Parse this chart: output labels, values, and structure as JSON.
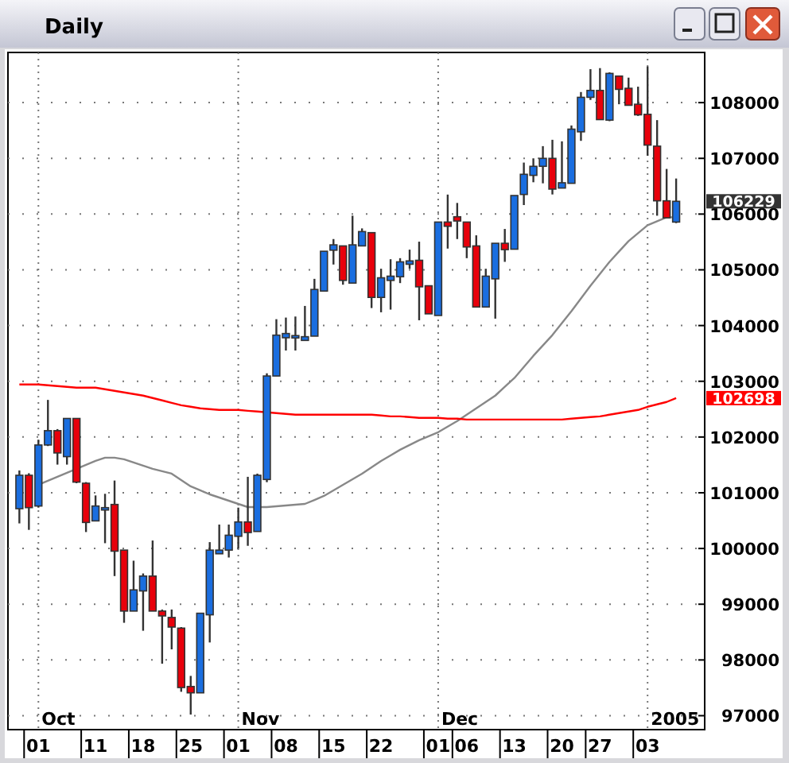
{
  "chart_data": {
    "type": "candlestick",
    "title": "Daily",
    "categories": [
      null,
      null,
      "01",
      null,
      null,
      null,
      null,
      null,
      "11",
      null,
      null,
      null,
      null,
      "18",
      null,
      null,
      null,
      null,
      "25",
      null,
      null,
      null,
      null,
      "01",
      null,
      null,
      null,
      null,
      "08",
      null,
      null,
      null,
      null,
      "15",
      null,
      null,
      null,
      null,
      "22",
      null,
      null,
      null,
      null,
      null,
      "01",
      null,
      null,
      "06",
      null,
      null,
      null,
      null,
      "13",
      null,
      null,
      null,
      null,
      "20",
      null,
      null,
      null,
      "27",
      null,
      null,
      null,
      null,
      "03",
      null,
      null,
      null
    ],
    "ohlc": [
      [
        100714,
        101400,
        100450,
        101314
      ],
      [
        101314,
        101350,
        100334,
        100733
      ],
      [
        100762,
        101952,
        100733,
        101857
      ],
      [
        101857,
        102666,
        101838,
        102114
      ],
      [
        102114,
        102142,
        101505,
        101714
      ],
      [
        101648,
        102333,
        101505,
        102333
      ],
      [
        102333,
        102333,
        101171,
        101191
      ],
      [
        101171,
        101191,
        100295,
        100467
      ],
      [
        100495,
        100952,
        100495,
        100762
      ],
      [
        100714,
        100981,
        100095,
        100733
      ],
      [
        100790,
        101219,
        99505,
        99952
      ],
      [
        99971,
        99971,
        98667,
        98877
      ],
      [
        98877,
        99781,
        98877,
        99257
      ],
      [
        99238,
        99552,
        98524,
        99505
      ],
      [
        99505,
        100143,
        98877,
        98877
      ],
      [
        98877,
        98905,
        97933,
        98790
      ],
      [
        98762,
        98905,
        98190,
        98590
      ],
      [
        98571,
        98590,
        97429,
        97505
      ],
      [
        97524,
        97714,
        97020,
        97410
      ],
      [
        97410,
        98838,
        97410,
        98838
      ],
      [
        98810,
        100114,
        98314,
        99971
      ],
      [
        99905,
        100429,
        99905,
        99971
      ],
      [
        99971,
        100429,
        99838,
        100238
      ],
      [
        100219,
        100733,
        99999,
        100476
      ],
      [
        100476,
        101286,
        100048,
        100286
      ],
      [
        100305,
        101343,
        100305,
        101314
      ],
      [
        101238,
        103143,
        101190,
        103095
      ],
      [
        103095,
        104114,
        103095,
        103828
      ],
      [
        103781,
        104143,
        103552,
        103857
      ],
      [
        103800,
        104162,
        103552,
        103820
      ],
      [
        103733,
        104352,
        103733,
        103800
      ],
      [
        103810,
        104838,
        103810,
        104648
      ],
      [
        104619,
        105333,
        104619,
        105333
      ],
      [
        105352,
        105552,
        105095,
        105448
      ],
      [
        105429,
        105429,
        104733,
        104810
      ],
      [
        104762,
        105971,
        104762,
        105448
      ],
      [
        105429,
        105743,
        105429,
        105686
      ],
      [
        105667,
        105667,
        104314,
        104505
      ],
      [
        104505,
        105019,
        104238,
        104857
      ],
      [
        104810,
        105190,
        104286,
        104886
      ],
      [
        104876,
        105209,
        104762,
        105143
      ],
      [
        105100,
        105362,
        105019,
        105160
      ],
      [
        105171,
        105505,
        104095,
        104695
      ],
      [
        104714,
        104714,
        104210,
        104210
      ],
      [
        104181,
        105857,
        104181,
        105857
      ],
      [
        105857,
        106350,
        105381,
        105781
      ],
      [
        105952,
        106200,
        105552,
        105876
      ],
      [
        105857,
        105857,
        105209,
        105410
      ],
      [
        105429,
        105619,
        104333,
        104333
      ],
      [
        104333,
        105019,
        104333,
        104886
      ],
      [
        104838,
        105476,
        104124,
        105476
      ],
      [
        105476,
        105733,
        105143,
        105362
      ],
      [
        105370,
        106333,
        105370,
        106333
      ],
      [
        106352,
        106924,
        106162,
        106714
      ],
      [
        106695,
        107000,
        106571,
        106857
      ],
      [
        106857,
        107219,
        106552,
        107000
      ],
      [
        107000,
        107333,
        106352,
        106448
      ],
      [
        106467,
        107305,
        106467,
        106562
      ],
      [
        106552,
        107590,
        106552,
        107524
      ],
      [
        107476,
        108190,
        107314,
        108095
      ],
      [
        108095,
        108600,
        108048,
        108219
      ],
      [
        108219,
        108619,
        107695,
        107695
      ],
      [
        107686,
        108543,
        107667,
        108524
      ],
      [
        108476,
        108476,
        107971,
        108238
      ],
      [
        108257,
        108448,
        107952,
        107952
      ],
      [
        107971,
        108286,
        107762,
        107781
      ],
      [
        107790,
        108648,
        107048,
        107238
      ],
      [
        107219,
        107686,
        105971,
        106238
      ],
      [
        106238,
        106810,
        105933,
        105933
      ],
      [
        105857,
        106638,
        105838,
        106229
      ]
    ],
    "colors": [
      "#1a6ee0",
      "#e8000b",
      "#1a6ee0",
      "#1a6ee0",
      "#e8000b",
      "#1a6ee0",
      "#e8000b",
      "#e8000b",
      "#1a6ee0",
      "#1a6ee0",
      "#e8000b",
      "#e8000b",
      "#1a6ee0",
      "#1a6ee0",
      "#e8000b",
      "#e8000b",
      "#e8000b",
      "#e8000b",
      "#e8000b",
      "#1a6ee0",
      "#1a6ee0",
      "#1a6ee0",
      "#1a6ee0",
      "#1a6ee0",
      "#e8000b",
      "#1a6ee0",
      "#1a6ee0",
      "#1a6ee0",
      "#1a6ee0",
      "#1a6ee0",
      "#1a6ee0",
      "#1a6ee0",
      "#1a6ee0",
      "#1a6ee0",
      "#e8000b",
      "#1a6ee0",
      "#1a6ee0",
      "#e8000b",
      "#1a6ee0",
      "#1a6ee0",
      "#1a6ee0",
      "#1a6ee0",
      "#e8000b",
      "#e8000b",
      "#1a6ee0",
      "#e8000b",
      "#e8000b",
      "#e8000b",
      "#e8000b",
      "#1a6ee0",
      "#1a6ee0",
      "#e8000b",
      "#1a6ee0",
      "#1a6ee0",
      "#1a6ee0",
      "#1a6ee0",
      "#e8000b",
      "#1a6ee0",
      "#1a6ee0",
      "#1a6ee0",
      "#1a6ee0",
      "#e8000b",
      "#1a6ee0",
      "#e8000b",
      "#e8000b",
      "#e8000b",
      "#e8000b",
      "#e8000b",
      "#e8000b",
      "#1a6ee0"
    ],
    "series": [
      {
        "type": "line",
        "color": "#888888",
        "values": [
          null,
          null,
          101143,
          101214,
          101286,
          101357,
          101429,
          101500,
          101571,
          101629,
          101629,
          101600,
          101543,
          101486,
          101429,
          101386,
          101343,
          101229,
          101114,
          101043,
          100971,
          100914,
          100857,
          100800,
          100743,
          100743,
          100743,
          100757,
          100771,
          100786,
          100800,
          100871,
          100943,
          101043,
          101143,
          101243,
          101343,
          101457,
          101571,
          101671,
          101771,
          101857,
          101943,
          102014,
          102086,
          102186,
          102286,
          102400,
          102514,
          102629,
          102743,
          102900,
          103057,
          103257,
          103457,
          103643,
          103829,
          104043,
          104257,
          104486,
          104714,
          104929,
          105143,
          105329,
          105514,
          105657,
          105800,
          105871,
          105943,
          105943
        ]
      },
      {
        "type": "line",
        "color": "#ff0000",
        "values": [
          102943,
          102943,
          102943,
          102929,
          102914,
          102900,
          102886,
          102886,
          102886,
          102857,
          102829,
          102800,
          102771,
          102743,
          102700,
          102657,
          102614,
          102571,
          102543,
          102514,
          102500,
          102486,
          102486,
          102486,
          102471,
          102457,
          102443,
          102429,
          102414,
          102400,
          102400,
          102400,
          102400,
          102400,
          102400,
          102400,
          102400,
          102400,
          102386,
          102371,
          102371,
          102357,
          102343,
          102343,
          102343,
          102329,
          102329,
          102314,
          102314,
          102314,
          102314,
          102314,
          102314,
          102314,
          102314,
          102314,
          102314,
          102314,
          102329,
          102343,
          102357,
          102371,
          102400,
          102429,
          102457,
          102486,
          102543,
          102586,
          102629,
          102698
        ]
      }
    ],
    "ylim": [
      96750,
      108900
    ],
    "yticks": [
      97000,
      98000,
      99000,
      100000,
      101000,
      102000,
      103000,
      104000,
      105000,
      106000,
      107000,
      108000
    ],
    "grid": true,
    "annotations": [
      "Oct",
      "Nov",
      "Dec",
      "2005",
      "106229",
      "102698"
    ]
  }
}
